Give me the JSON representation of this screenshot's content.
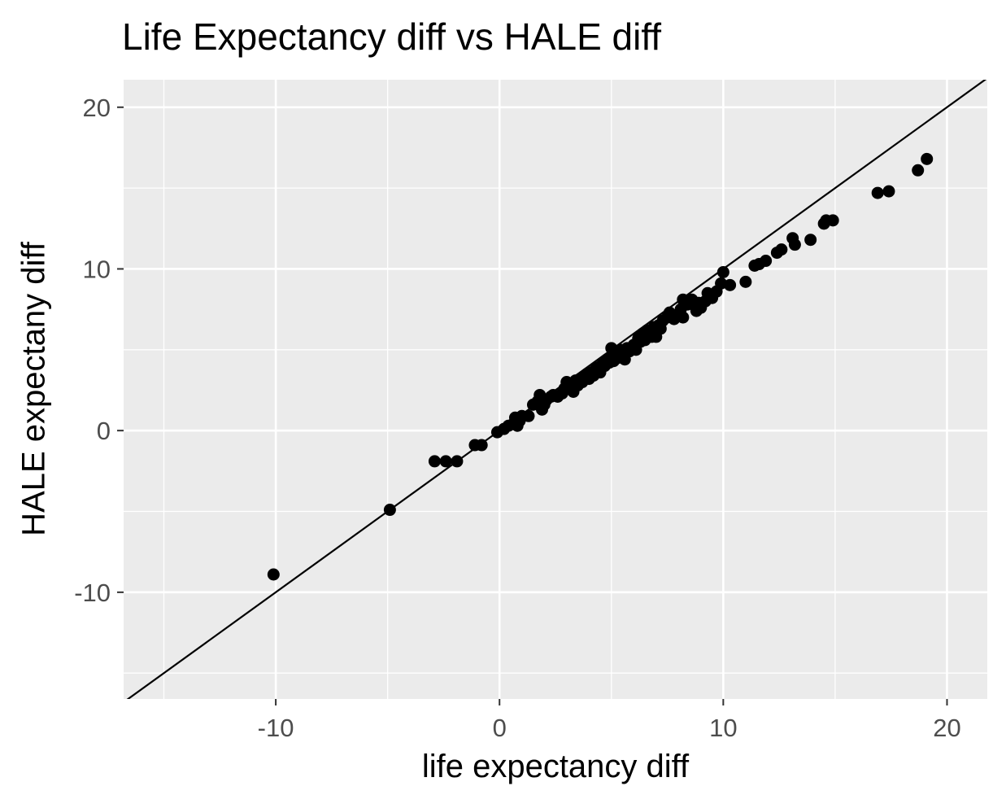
{
  "chart_data": {
    "type": "scatter",
    "title": "Life Expectancy diff vs HALE diff",
    "xlabel": "life expectancy diff",
    "ylabel": "HALE expectany diff",
    "xlim": [
      -16.8,
      21.8
    ],
    "ylim": [
      -16.6,
      21.7
    ],
    "x_ticks": [
      -10,
      0,
      10,
      20
    ],
    "x_tick_labels": [
      "-10",
      "0",
      "10",
      "20"
    ],
    "y_ticks": [
      -10,
      0,
      10,
      20
    ],
    "y_tick_labels": [
      "-10",
      "0",
      "10",
      "20"
    ],
    "grid": true,
    "panel_background": "#ebebeb",
    "grid_color": "#ffffff",
    "point_color": "#000000",
    "reference_line": {
      "slope": 1,
      "intercept": 0
    },
    "series": [
      {
        "points": [
          [
            -10.1,
            -8.9
          ],
          [
            -4.9,
            -4.9
          ],
          [
            -2.9,
            -1.9
          ],
          [
            -2.4,
            -1.9
          ],
          [
            -1.9,
            -1.9
          ],
          [
            -1.1,
            -0.9
          ],
          [
            -0.8,
            -0.9
          ],
          [
            -0.1,
            -0.1
          ],
          [
            0.2,
            0.1
          ],
          [
            0.4,
            0.3
          ],
          [
            0.6,
            0.4
          ],
          [
            0.7,
            0.8
          ],
          [
            0.8,
            0.3
          ],
          [
            0.9,
            0.6
          ],
          [
            1.0,
            0.9
          ],
          [
            1.3,
            0.9
          ],
          [
            1.5,
            1.6
          ],
          [
            1.7,
            1.8
          ],
          [
            1.8,
            2.2
          ],
          [
            1.9,
            1.3
          ],
          [
            2.0,
            1.6
          ],
          [
            2.1,
            1.9
          ],
          [
            2.3,
            2.1
          ],
          [
            2.4,
            2.2
          ],
          [
            2.6,
            2.1
          ],
          [
            2.8,
            2.3
          ],
          [
            2.9,
            2.6
          ],
          [
            3.0,
            3.0
          ],
          [
            3.1,
            2.6
          ],
          [
            3.2,
            2.9
          ],
          [
            3.3,
            2.4
          ],
          [
            3.4,
            3.1
          ],
          [
            3.5,
            2.8
          ],
          [
            3.6,
            3.2
          ],
          [
            3.7,
            3.0
          ],
          [
            3.8,
            3.3
          ],
          [
            3.9,
            3.5
          ],
          [
            4.0,
            3.2
          ],
          [
            4.1,
            3.6
          ],
          [
            4.2,
            3.4
          ],
          [
            4.3,
            3.8
          ],
          [
            4.4,
            3.9
          ],
          [
            4.5,
            3.6
          ],
          [
            4.6,
            4.1
          ],
          [
            4.7,
            4.0
          ],
          [
            4.8,
            4.4
          ],
          [
            4.9,
            4.2
          ],
          [
            5.0,
            5.1
          ],
          [
            5.0,
            4.6
          ],
          [
            5.1,
            4.3
          ],
          [
            5.2,
            4.8
          ],
          [
            5.3,
            4.5
          ],
          [
            5.4,
            5.0
          ],
          [
            5.5,
            4.7
          ],
          [
            5.6,
            4.4
          ],
          [
            5.7,
            5.1
          ],
          [
            5.8,
            4.9
          ],
          [
            6.0,
            5.3
          ],
          [
            6.1,
            5.0
          ],
          [
            6.2,
            5.7
          ],
          [
            6.3,
            5.5
          ],
          [
            6.4,
            6.0
          ],
          [
            6.5,
            5.6
          ],
          [
            6.6,
            6.2
          ],
          [
            6.7,
            6.1
          ],
          [
            6.8,
            5.8
          ],
          [
            6.9,
            6.4
          ],
          [
            7.0,
            5.8
          ],
          [
            7.1,
            6.5
          ],
          [
            7.2,
            6.3
          ],
          [
            7.3,
            6.8
          ],
          [
            7.5,
            7.0
          ],
          [
            7.6,
            7.3
          ],
          [
            7.8,
            6.9
          ],
          [
            8.0,
            7.2
          ],
          [
            8.1,
            7.5
          ],
          [
            8.2,
            7.0
          ],
          [
            8.2,
            8.1
          ],
          [
            8.4,
            7.8
          ],
          [
            8.6,
            8.1
          ],
          [
            8.8,
            7.4
          ],
          [
            8.9,
            7.9
          ],
          [
            9.0,
            7.6
          ],
          [
            9.2,
            8.0
          ],
          [
            9.3,
            8.5
          ],
          [
            9.5,
            8.2
          ],
          [
            9.7,
            8.6
          ],
          [
            9.9,
            9.1
          ],
          [
            10.0,
            9.8
          ],
          [
            10.3,
            9.0
          ],
          [
            11.0,
            9.2
          ],
          [
            11.4,
            10.2
          ],
          [
            11.6,
            10.3
          ],
          [
            11.9,
            10.5
          ],
          [
            12.4,
            11.0
          ],
          [
            12.6,
            11.2
          ],
          [
            13.1,
            11.9
          ],
          [
            13.2,
            11.5
          ],
          [
            13.9,
            11.8
          ],
          [
            14.5,
            12.8
          ],
          [
            14.6,
            13.0
          ],
          [
            14.9,
            13.0
          ],
          [
            16.9,
            14.7
          ],
          [
            17.4,
            14.8
          ],
          [
            18.7,
            16.1
          ],
          [
            19.1,
            16.8
          ]
        ]
      }
    ]
  }
}
